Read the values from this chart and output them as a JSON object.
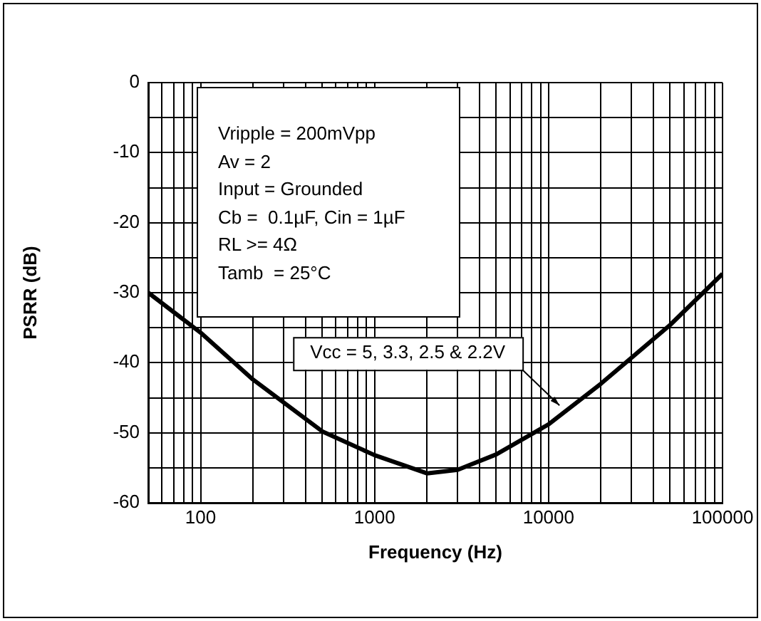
{
  "chart_data": {
    "type": "line",
    "xlabel": "Frequency (Hz)",
    "ylabel": "PSRR (dB)",
    "log": "x",
    "grid": true,
    "legend": false,
    "marker": "none",
    "line_style": "solid",
    "xlim": [
      50,
      100000
    ],
    "xticks": [
      {
        "value": 50,
        "label": null
      },
      {
        "value": 60,
        "label": null
      },
      {
        "value": 70,
        "label": null
      },
      {
        "value": 80,
        "label": null
      },
      {
        "value": 90,
        "label": null
      },
      100,
      {
        "value": 200,
        "label": null
      },
      {
        "value": 300,
        "label": null
      },
      {
        "value": 400,
        "label": null
      },
      {
        "value": 500,
        "label": null
      },
      {
        "value": 600,
        "label": null
      },
      {
        "value": 700,
        "label": null
      },
      {
        "value": 800,
        "label": null
      },
      {
        "value": 900,
        "label": null
      },
      1000,
      {
        "value": 2000,
        "label": null
      },
      {
        "value": 3000,
        "label": null
      },
      {
        "value": 4000,
        "label": null
      },
      {
        "value": 5000,
        "label": null
      },
      {
        "value": 6000,
        "label": null
      },
      {
        "value": 7000,
        "label": null
      },
      {
        "value": 8000,
        "label": null
      },
      {
        "value": 9000,
        "label": null
      },
      10000,
      {
        "value": 20000,
        "label": null
      },
      {
        "value": 30000,
        "label": null
      },
      {
        "value": 40000,
        "label": null
      },
      {
        "value": 50000,
        "label": null
      },
      {
        "value": 60000,
        "label": null
      },
      {
        "value": 70000,
        "label": null
      },
      {
        "value": 80000,
        "label": null
      },
      {
        "value": 90000,
        "label": null
      },
      100000
    ],
    "ylim": [
      -60,
      0
    ],
    "yticks": [
      -60,
      {
        "value": -55,
        "label": null
      },
      -50,
      {
        "value": -45,
        "label": null
      },
      -40,
      {
        "value": -35,
        "label": null
      },
      -30,
      {
        "value": -25,
        "label": null
      },
      -20,
      {
        "value": -15,
        "label": null
      },
      -10,
      {
        "value": -5,
        "label": null
      },
      0
    ],
    "series": [
      {
        "color": "#000000",
        "x": [
          50,
          100,
          200,
          500,
          1000,
          2000,
          3000,
          5000,
          10000,
          20000,
          50000,
          100000
        ],
        "values": [
          -30,
          -35.7,
          -42.4,
          -49.8,
          -53.2,
          -55.8,
          -55.3,
          -53.1,
          -48.8,
          -43,
          -34.6,
          -27.3
        ]
      }
    ],
    "annotations": [
      "Vripple = 200mVpp",
      "Av = 2",
      "Input = Grounded",
      "Cb =  0.1µF, Cin = 1µF",
      "RL >= 4Ω",
      "Tamb  = 25°C",
      {
        "text": "Vcc = 5, 3.3, 2.5 & 2.2V",
        "x": 12000,
        "y": -46.5
      }
    ]
  }
}
